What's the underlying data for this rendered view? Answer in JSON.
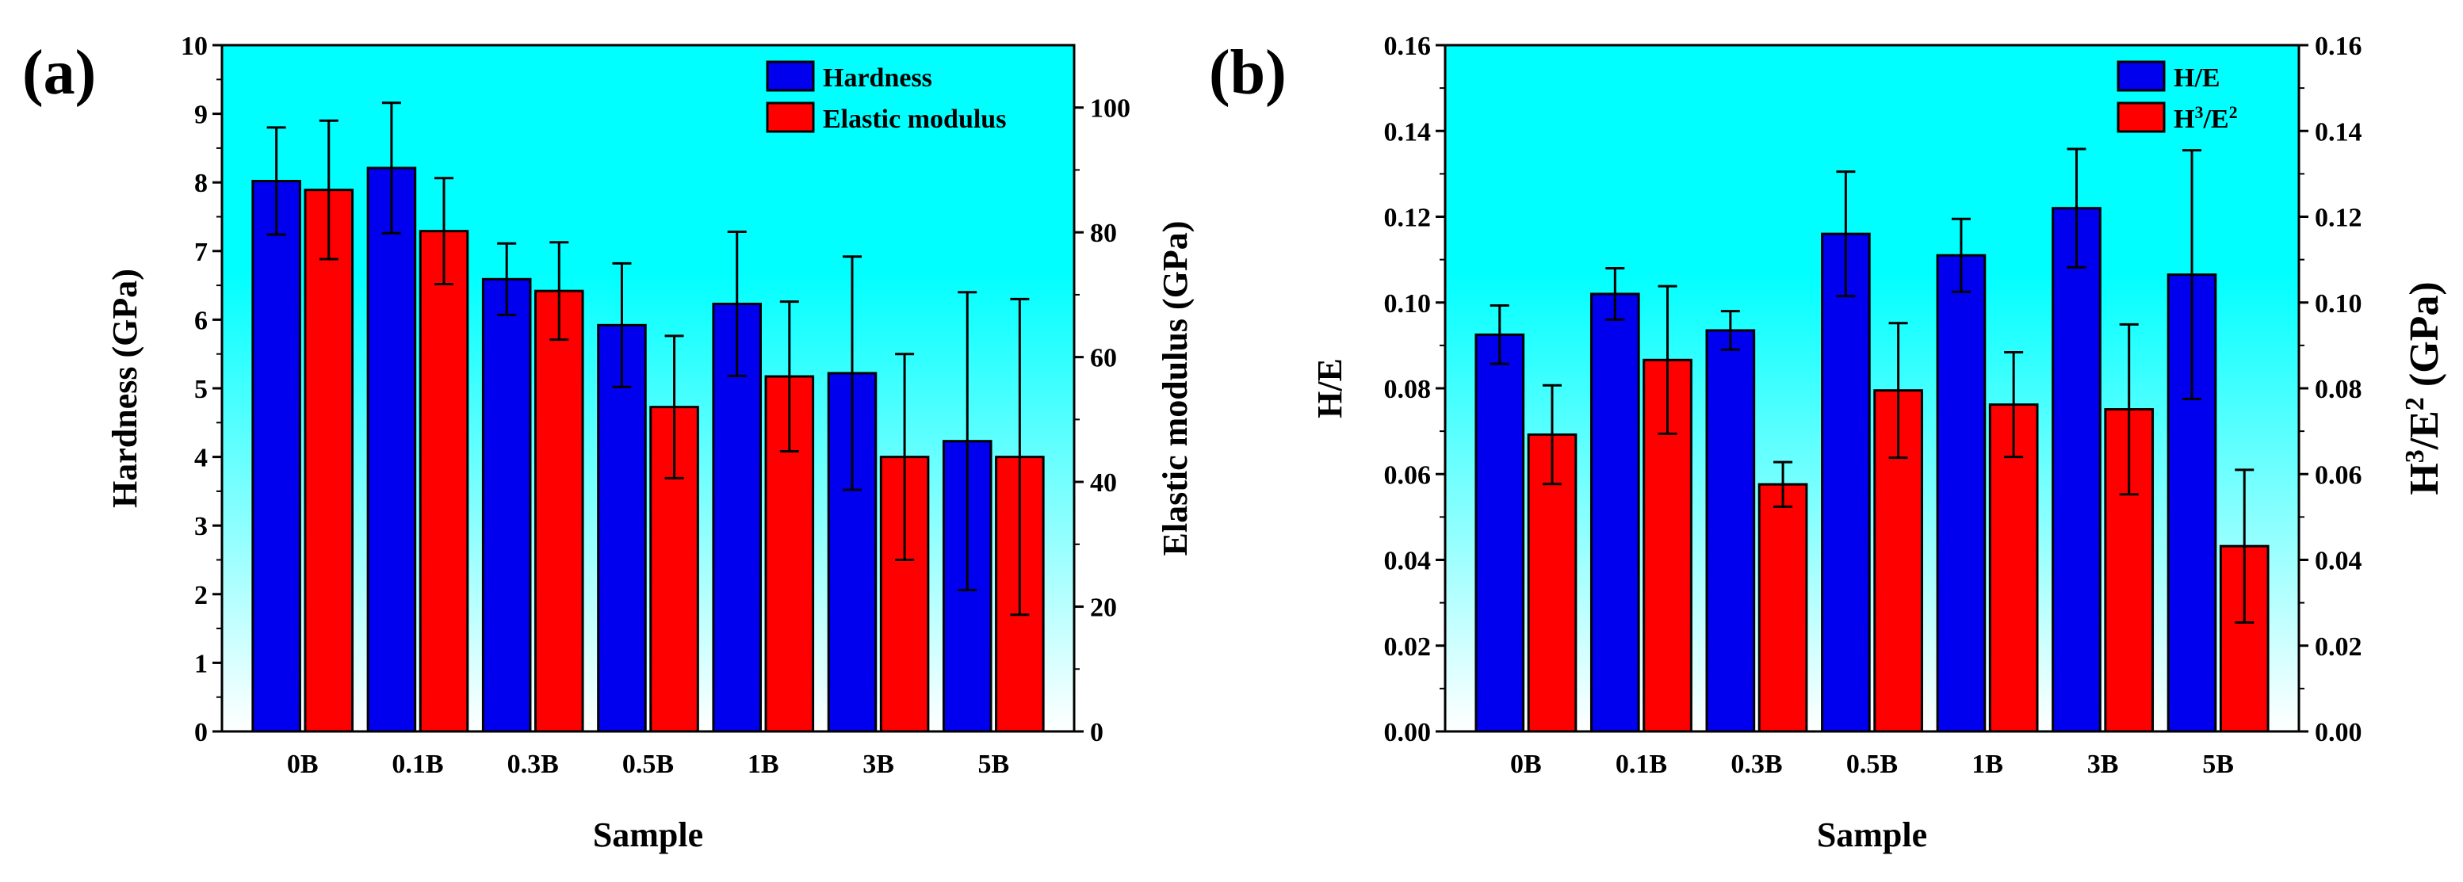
{
  "colors": {
    "hardness": "#0000ee",
    "elastic": "#ff0000",
    "bg_top": "#00ffff",
    "bg_bottom": "#ffffff"
  },
  "chart_data": [
    {
      "type": "bar",
      "panel_label": "(a)",
      "categories": [
        "0B",
        "0.1B",
        "0.3B",
        "0.5B",
        "1B",
        "3B",
        "5B"
      ],
      "xlabel": "Sample",
      "ylabel": "Hardness (GPa)",
      "y2label": "Elastic modulus (GPa)",
      "ylim": [
        0,
        10
      ],
      "y2lim": [
        0,
        110
      ],
      "yticks": [
        0,
        1,
        2,
        3,
        4,
        5,
        6,
        7,
        8,
        9,
        10
      ],
      "y2ticks": [
        0,
        20,
        40,
        60,
        80,
        100
      ],
      "legend_position": "top-right",
      "series": [
        {
          "name": "Hardness",
          "axis": "left",
          "color": "#0000ee",
          "values": [
            8.02,
            8.21,
            6.59,
            5.92,
            6.23,
            5.22,
            4.23
          ],
          "errors": [
            0.78,
            0.95,
            0.52,
            0.9,
            1.05,
            1.7,
            2.17
          ]
        },
        {
          "name": "Elastic modulus",
          "axis": "right",
          "color": "#ff0000",
          "values": [
            86.8,
            80.2,
            70.6,
            52.0,
            56.9,
            44.0,
            44.0
          ],
          "errors": [
            11.1,
            8.5,
            7.8,
            11.4,
            12.0,
            16.5,
            25.3
          ]
        }
      ]
    },
    {
      "type": "bar",
      "panel_label": "(b)",
      "categories": [
        "0B",
        "0.1B",
        "0.3B",
        "0.5B",
        "1B",
        "3B",
        "5B"
      ],
      "xlabel": "Sample",
      "ylabel": "H/E",
      "y2label_parts": [
        "H",
        "3",
        "/E",
        "2",
        " (GPa)"
      ],
      "ylim": [
        0,
        0.16
      ],
      "y2lim": [
        0,
        0.16
      ],
      "yticks": [
        0.0,
        0.02,
        0.04,
        0.06,
        0.08,
        0.1,
        0.12,
        0.14,
        0.16
      ],
      "y2ticks": [
        0.0,
        0.02,
        0.04,
        0.06,
        0.08,
        0.1,
        0.12,
        0.14,
        0.16
      ],
      "legend_position": "top-right",
      "series": [
        {
          "name": "H/E",
          "name_parts": [
            "H/E"
          ],
          "axis": "left",
          "color": "#0000ee",
          "values": [
            0.0925,
            0.102,
            0.0935,
            0.116,
            0.111,
            0.122,
            0.1065
          ],
          "errors": [
            0.0068,
            0.006,
            0.0045,
            0.0145,
            0.0085,
            0.0138,
            0.029
          ]
        },
        {
          "name": "H3/E2",
          "name_parts": [
            "H",
            "3",
            "/E",
            "2"
          ],
          "axis": "right",
          "color": "#ff0000",
          "values": [
            0.0692,
            0.0866,
            0.0576,
            0.0795,
            0.0762,
            0.0751,
            0.0432
          ],
          "errors": [
            0.0115,
            0.0172,
            0.0052,
            0.0157,
            0.0122,
            0.0198,
            0.0178
          ]
        }
      ]
    }
  ]
}
